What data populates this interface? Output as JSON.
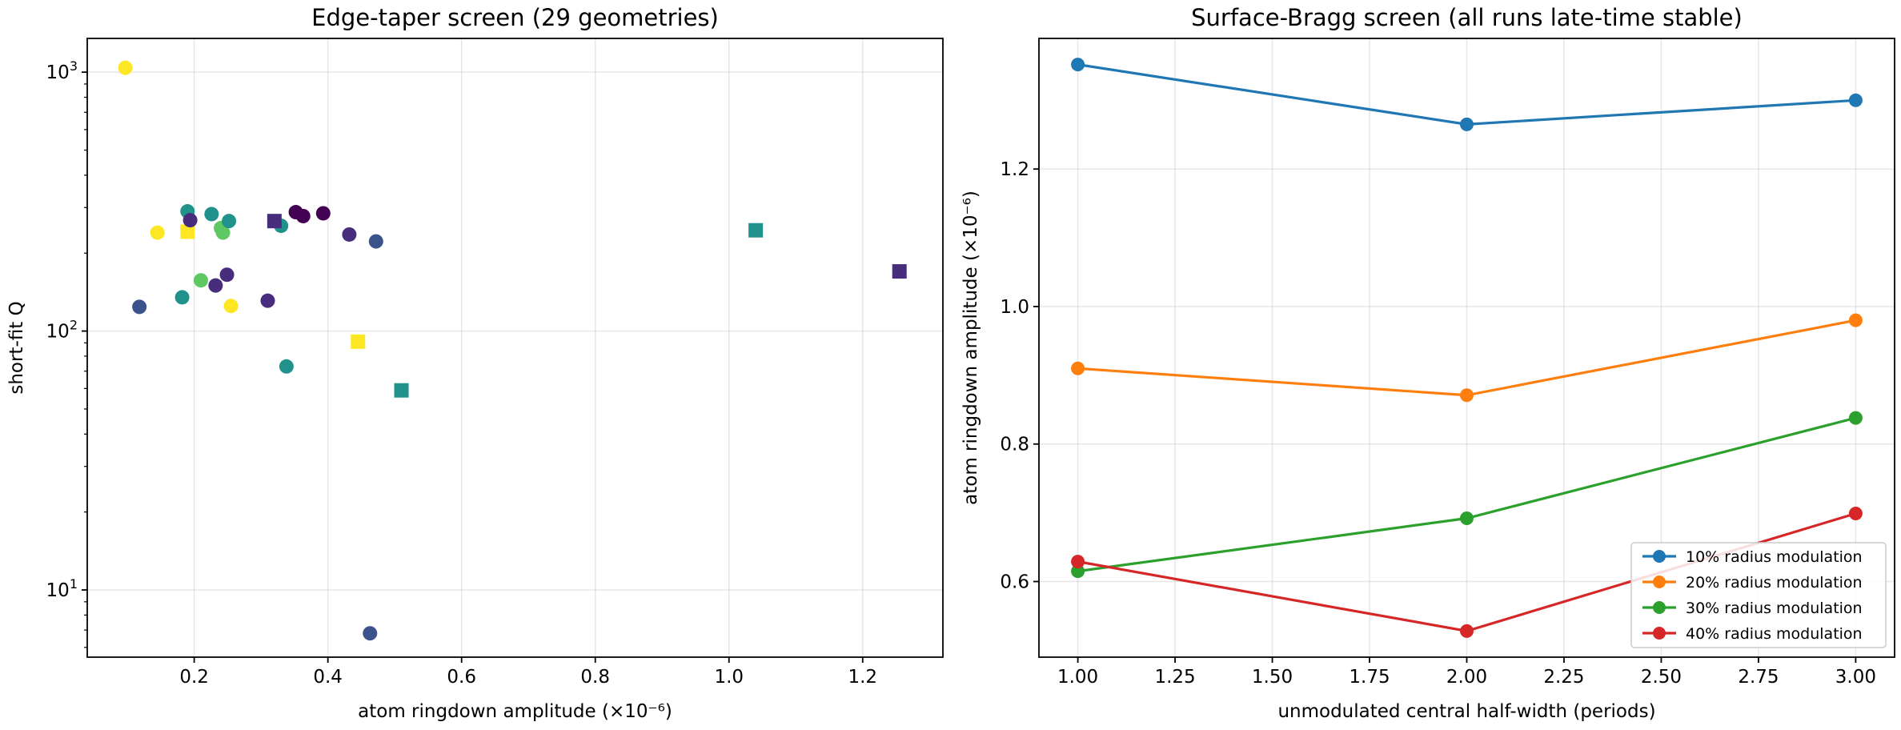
{
  "chart_data": [
    {
      "type": "scatter",
      "title": "Edge-taper screen (29 geometries)",
      "xlabel": "atom ringdown amplitude (×10⁻⁶)",
      "ylabel": "short-fit Q",
      "xlim": [
        0.04,
        1.32
      ],
      "ylim": [
        5.5,
        1350
      ],
      "yscale": "log",
      "x_ticks": [
        {
          "value": 0.2,
          "label": "0.2"
        },
        {
          "value": 0.4,
          "label": "0.4"
        },
        {
          "value": 0.6,
          "label": "0.6"
        },
        {
          "value": 0.8,
          "label": "0.8"
        },
        {
          "value": 1.0,
          "label": "1.0"
        },
        {
          "value": 1.2,
          "label": "1.2"
        }
      ],
      "y_ticks": [
        {
          "value": 10,
          "base": "10",
          "exp": "1"
        },
        {
          "value": 100,
          "base": "10",
          "exp": "2"
        },
        {
          "value": 1000,
          "base": "10",
          "exp": "3"
        }
      ],
      "grid": true,
      "points": [
        {
          "x": 0.097,
          "y": 1040,
          "marker": "circle",
          "color": "#fde725"
        },
        {
          "x": 0.145,
          "y": 240,
          "marker": "circle",
          "color": "#fde725"
        },
        {
          "x": 0.19,
          "y": 242,
          "marker": "square",
          "color": "#fde725"
        },
        {
          "x": 0.255,
          "y": 125,
          "marker": "circle",
          "color": "#fde725"
        },
        {
          "x": 0.445,
          "y": 91,
          "marker": "square",
          "color": "#fde725"
        },
        {
          "x": 0.21,
          "y": 157,
          "marker": "circle",
          "color": "#5ec962"
        },
        {
          "x": 0.24,
          "y": 250,
          "marker": "circle",
          "color": "#5ec962"
        },
        {
          "x": 0.243,
          "y": 240,
          "marker": "circle",
          "color": "#5ec962"
        },
        {
          "x": 0.182,
          "y": 135,
          "marker": "circle",
          "color": "#21918c"
        },
        {
          "x": 0.19,
          "y": 290,
          "marker": "circle",
          "color": "#21918c"
        },
        {
          "x": 0.226,
          "y": 283,
          "marker": "circle",
          "color": "#21918c"
        },
        {
          "x": 0.252,
          "y": 266,
          "marker": "circle",
          "color": "#21918c"
        },
        {
          "x": 0.33,
          "y": 255,
          "marker": "circle",
          "color": "#21918c"
        },
        {
          "x": 0.338,
          "y": 73,
          "marker": "circle",
          "color": "#21918c"
        },
        {
          "x": 0.51,
          "y": 59,
          "marker": "square",
          "color": "#21918c"
        },
        {
          "x": 1.04,
          "y": 245,
          "marker": "square",
          "color": "#21918c"
        },
        {
          "x": 0.118,
          "y": 124,
          "marker": "circle",
          "color": "#3b528b"
        },
        {
          "x": 0.472,
          "y": 222,
          "marker": "circle",
          "color": "#3b528b"
        },
        {
          "x": 0.463,
          "y": 6.8,
          "marker": "circle",
          "color": "#3b528b"
        },
        {
          "x": 0.194,
          "y": 268,
          "marker": "circle",
          "color": "#472d7b"
        },
        {
          "x": 0.232,
          "y": 150,
          "marker": "circle",
          "color": "#472d7b"
        },
        {
          "x": 0.249,
          "y": 165,
          "marker": "circle",
          "color": "#472d7b"
        },
        {
          "x": 0.31,
          "y": 131,
          "marker": "circle",
          "color": "#472d7b"
        },
        {
          "x": 0.432,
          "y": 236,
          "marker": "circle",
          "color": "#472d7b"
        },
        {
          "x": 0.32,
          "y": 266,
          "marker": "square",
          "color": "#472d7b"
        },
        {
          "x": 1.255,
          "y": 170,
          "marker": "square",
          "color": "#472d7b"
        },
        {
          "x": 0.352,
          "y": 288,
          "marker": "circle",
          "color": "#440154"
        },
        {
          "x": 0.363,
          "y": 278,
          "marker": "circle",
          "color": "#440154"
        },
        {
          "x": 0.393,
          "y": 285,
          "marker": "circle",
          "color": "#440154"
        }
      ]
    },
    {
      "type": "line",
      "title": "Surface-Bragg screen (all runs late-time stable)",
      "xlabel": "unmodulated central half-width (periods)",
      "ylabel": "atom ringdown amplitude (×10⁻⁶)",
      "xlim": [
        0.9,
        3.1
      ],
      "ylim": [
        0.49,
        1.39
      ],
      "x_ticks": [
        "1.00",
        "1.25",
        "1.50",
        "1.75",
        "2.00",
        "2.25",
        "2.50",
        "2.75",
        "3.00"
      ],
      "y_ticks": [
        "0.6",
        "0.8",
        "1.0",
        "1.2"
      ],
      "grid": true,
      "legend_position": "lower-right",
      "x": [
        1.0,
        2.0,
        3.0
      ],
      "series": [
        {
          "name": "10% radius modulation",
          "color": "#1f77b4",
          "values": [
            1.352,
            1.265,
            1.3
          ]
        },
        {
          "name": "20% radius modulation",
          "color": "#ff7f0e",
          "values": [
            0.91,
            0.871,
            0.98
          ]
        },
        {
          "name": "30% radius modulation",
          "color": "#2ca02c",
          "values": [
            0.615,
            0.692,
            0.838
          ]
        },
        {
          "name": "40% radius modulation",
          "color": "#d62728",
          "values": [
            0.629,
            0.528,
            0.699
          ]
        }
      ]
    }
  ]
}
